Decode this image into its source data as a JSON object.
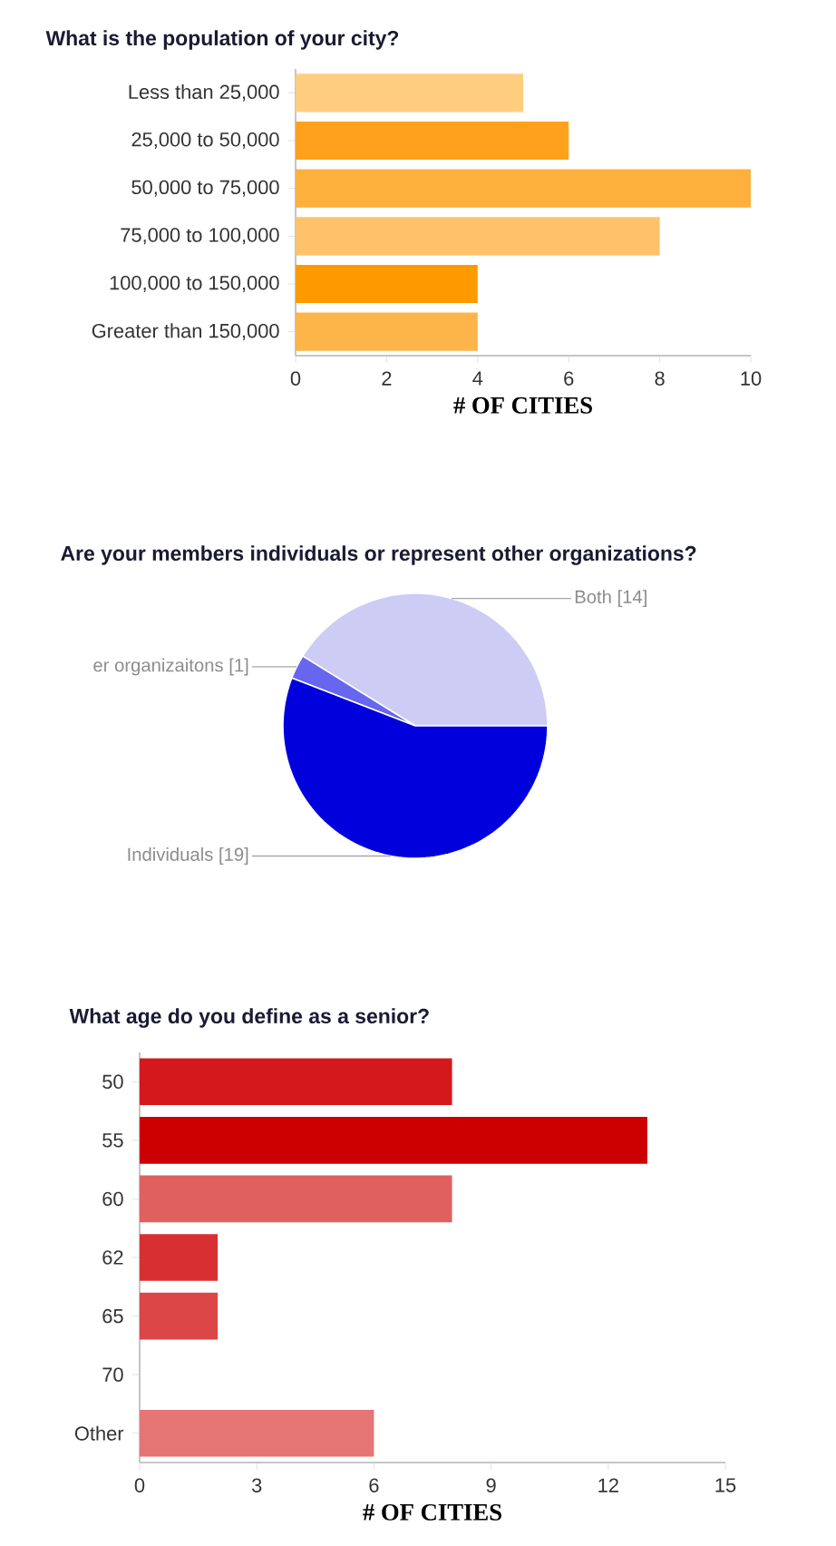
{
  "chart_data": [
    {
      "type": "bar",
      "orientation": "horizontal",
      "title": "What is the population of your city?",
      "xlabel": "# OF CITIES",
      "categories": [
        "Less than 25,000",
        "25,000 to 50,000",
        "50,000 to 75,000",
        "75,000 to 100,000",
        "100,000 to 150,000",
        "Greater than 150,000"
      ],
      "values": [
        5,
        6,
        10,
        8,
        4,
        4
      ],
      "colors": [
        "#fecd7f",
        "#fea21e",
        "#feb03c",
        "#fec26a",
        "#fd9a00",
        "#fdb54a"
      ],
      "xlim": [
        0,
        10
      ],
      "xticks": [
        0,
        2,
        4,
        6,
        8,
        10
      ]
    },
    {
      "type": "pie",
      "title": "Are your members individuals or represent other organizations?",
      "categories": [
        "Both [14]",
        "er organizaitons [1]",
        "Individuals [19]"
      ],
      "values": [
        14,
        1,
        19
      ],
      "colors": [
        "#ccccf5",
        "#6666ee",
        "#0000dd"
      ]
    },
    {
      "type": "bar",
      "orientation": "horizontal",
      "title": "What age do you define as a senior?",
      "xlabel": "# OF CITIES",
      "categories": [
        "50",
        "55",
        "60",
        "62",
        "65",
        "70",
        "Other"
      ],
      "values": [
        8,
        13,
        8,
        2,
        2,
        0,
        6
      ],
      "colors": [
        "#d4181b",
        "#cc0000",
        "#e06060",
        "#d83030",
        "#dc4646",
        "#dc4646",
        "#e57474"
      ],
      "xlim": [
        0,
        15
      ],
      "xticks": [
        0,
        3,
        6,
        9,
        12,
        15
      ]
    }
  ]
}
